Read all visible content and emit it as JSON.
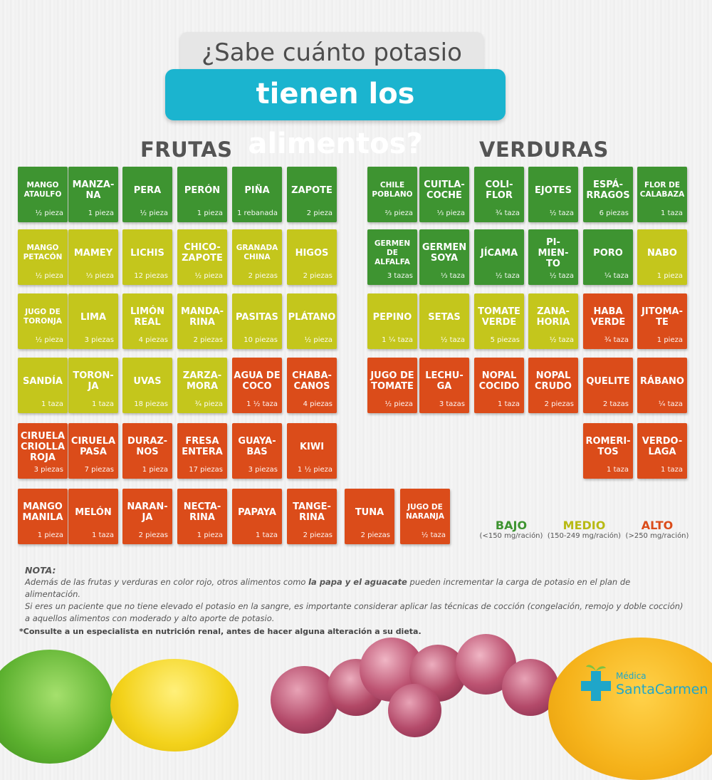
{
  "title_line1": "¿Sabe cuánto potasio",
  "title_line2": "tienen los alimentos?",
  "fruits_heading": "FRUTAS",
  "vegetables_heading": "VERDURAS",
  "fruits": [
    {
      "name": "MANGO ATAULFO",
      "portion": "½ pieza",
      "level": "g",
      "small": true
    },
    {
      "name": "MANZA- NA",
      "portion": "1 pieza",
      "level": "g"
    },
    {
      "name": "PERA",
      "portion": "½ pieza",
      "level": "g"
    },
    {
      "name": "PERÓN",
      "portion": "1 pieza",
      "level": "g"
    },
    {
      "name": "PIÑA",
      "portion": "1 rebanada",
      "level": "g"
    },
    {
      "name": "ZAPOTE",
      "portion": "2 pieza",
      "level": "g"
    },
    {
      "name": "MANGO PETACÓN",
      "portion": "½ pieza",
      "level": "y",
      "small": true
    },
    {
      "name": "MAMEY",
      "portion": "⅓ pieza",
      "level": "y"
    },
    {
      "name": "LICHIS",
      "portion": "12 piezas",
      "level": "y"
    },
    {
      "name": "CHICO- ZAPOTE",
      "portion": "½ pieza",
      "level": "y"
    },
    {
      "name": "GRANADA CHINA",
      "portion": "2 piezas",
      "level": "y",
      "small": true
    },
    {
      "name": "HIGOS",
      "portion": "2 piezas",
      "level": "y"
    },
    {
      "name": "JUGO DE TORONJA",
      "portion": "½ pieza",
      "level": "y",
      "small": true
    },
    {
      "name": "LIMA",
      "portion": "3 piezas",
      "level": "y"
    },
    {
      "name": "LIMÓN REAL",
      "portion": "4 piezas",
      "level": "y"
    },
    {
      "name": "MANDA- RINA",
      "portion": "2 piezas",
      "level": "y"
    },
    {
      "name": "PASITAS",
      "portion": "10 piezas",
      "level": "y"
    },
    {
      "name": "PLÁTANO",
      "portion": "½ pieza",
      "level": "y"
    },
    {
      "name": "SANDÍA",
      "portion": "1 taza",
      "level": "y"
    },
    {
      "name": "TORON- JA",
      "portion": "1 taza",
      "level": "y"
    },
    {
      "name": "UVAS",
      "portion": "18 piezas",
      "level": "y"
    },
    {
      "name": "ZARZA- MORA",
      "portion": "¾ pieza",
      "level": "y"
    },
    {
      "name": "AGUA DE COCO",
      "portion": "1 ½ taza",
      "level": "r"
    },
    {
      "name": "CHABA- CANOS",
      "portion": "4 piezas",
      "level": "r"
    },
    {
      "name": "CIRUELA CRIOLLA ROJA",
      "portion": "3 piezas",
      "level": "r"
    },
    {
      "name": "CIRUELA PASA",
      "portion": "7 piezas",
      "level": "r"
    },
    {
      "name": "DURAZ- NOS",
      "portion": "1 pieza",
      "level": "r"
    },
    {
      "name": "FRESA ENTERA",
      "portion": "17 piezas",
      "level": "r"
    },
    {
      "name": "GUAYA- BAS",
      "portion": "3 piezas",
      "level": "r"
    },
    {
      "name": "KIWI",
      "portion": "1 ½ pieza",
      "level": "r"
    },
    {
      "name": "MANGO MANILA",
      "portion": "1 pieza",
      "level": "r"
    },
    {
      "name": "MELÓN",
      "portion": "1 taza",
      "level": "r"
    },
    {
      "name": "NARAN- JA",
      "portion": "2 piezas",
      "level": "r"
    },
    {
      "name": "NECTA- RINA",
      "portion": "1 pieza",
      "level": "r"
    },
    {
      "name": "PAPAYA",
      "portion": "1 taza",
      "level": "r"
    },
    {
      "name": "TANGE- RINA",
      "portion": "2 piezas",
      "level": "r"
    },
    {
      "name": "TUNA",
      "portion": "2 piezas",
      "level": "r"
    },
    {
      "name": "JUGO DE NARANJA",
      "portion": "½ taza",
      "level": "r",
      "small": true
    }
  ],
  "vegetables": [
    {
      "name": "CHILE POBLANO",
      "portion": "⅔ pieza",
      "level": "g",
      "small": true
    },
    {
      "name": "CUITLA- COCHE",
      "portion": "⅓ pieza",
      "level": "g"
    },
    {
      "name": "COLI- FLOR",
      "portion": "¾ taza",
      "level": "g"
    },
    {
      "name": "EJOTES",
      "portion": "½ taza",
      "level": "g"
    },
    {
      "name": "ESPÁ- RRAGOS",
      "portion": "6 piezas",
      "level": "g"
    },
    {
      "name": "FLOR DE CALABAZA",
      "portion": "1 taza",
      "level": "g",
      "small": true
    },
    {
      "name": "GERMEN DE ALFALFA",
      "portion": "3 tazas",
      "level": "g",
      "small": true
    },
    {
      "name": "GERMEN SOYA",
      "portion": "⅓ taza",
      "level": "g"
    },
    {
      "name": "JÍCAMA",
      "portion": "½ taza",
      "level": "g"
    },
    {
      "name": "PI- MIEN- TO",
      "portion": "½ taza",
      "level": "g"
    },
    {
      "name": "PORO",
      "portion": "¼ taza",
      "level": "g"
    },
    {
      "name": "NABO",
      "portion": "1 pieza",
      "level": "y"
    },
    {
      "name": "PEPINO",
      "portion": "1 ¼ taza",
      "level": "y"
    },
    {
      "name": "SETAS",
      "portion": "½ taza",
      "level": "y"
    },
    {
      "name": "TOMATE VERDE",
      "portion": "5 piezas",
      "level": "y"
    },
    {
      "name": "ZANA- HORIA",
      "portion": "½ taza",
      "level": "y"
    },
    {
      "name": "HABA VERDE",
      "portion": "¾ taza",
      "level": "r"
    },
    {
      "name": "JITOMA- TE",
      "portion": "1 pieza",
      "level": "r"
    },
    {
      "name": "JUGO DE TOMATE",
      "portion": "½ pieza",
      "level": "r"
    },
    {
      "name": "LECHU- GA",
      "portion": "3 tazas",
      "level": "r"
    },
    {
      "name": "NOPAL COCIDO",
      "portion": "1 taza",
      "level": "r"
    },
    {
      "name": "NOPAL CRUDO",
      "portion": "2 piezas",
      "level": "r"
    },
    {
      "name": "QUELITE",
      "portion": "2 tazas",
      "level": "r"
    },
    {
      "name": "RÁBANO",
      "portion": "¼ taza",
      "level": "r"
    },
    {
      "name": "ROMERI- TOS",
      "portion": "1 taza",
      "level": "r"
    },
    {
      "name": "VERDO- LAGA",
      "portion": "1 taza",
      "level": "r"
    }
  ],
  "legend": [
    {
      "label": "BAJO",
      "sub": "(<150 mg/ración)",
      "color": "#3e9431"
    },
    {
      "label": "MEDIO",
      "sub": "(150-249 mg/ración)",
      "color": "#c4c61c"
    },
    {
      "label": "ALTO",
      "sub": "(>250 mg/ración)",
      "color": "#db4c1a"
    }
  ],
  "note_title": "NOTA:",
  "note_1a": "Además de las frutas y verduras en color rojo, otros alimentos como ",
  "note_1b": "la papa y el aguacate",
  "note_1c": " pueden incrementar  la carga de potasio en el plan de alimentación.",
  "note_2": "Si eres un paciente que no tiene elevado el potasio en la sangre, es importante considerar aplicar las técnicas de  cocción (congelación, remojo y doble cocción) a aquellos alimentos con moderado y alto aporte de potasio.",
  "disclaimer": "*Consulte a un especialista en nutrición renal, antes de hacer alguna alteración a su dieta.",
  "logo_line1": "Médica",
  "logo_line2": "SantaCarmen"
}
